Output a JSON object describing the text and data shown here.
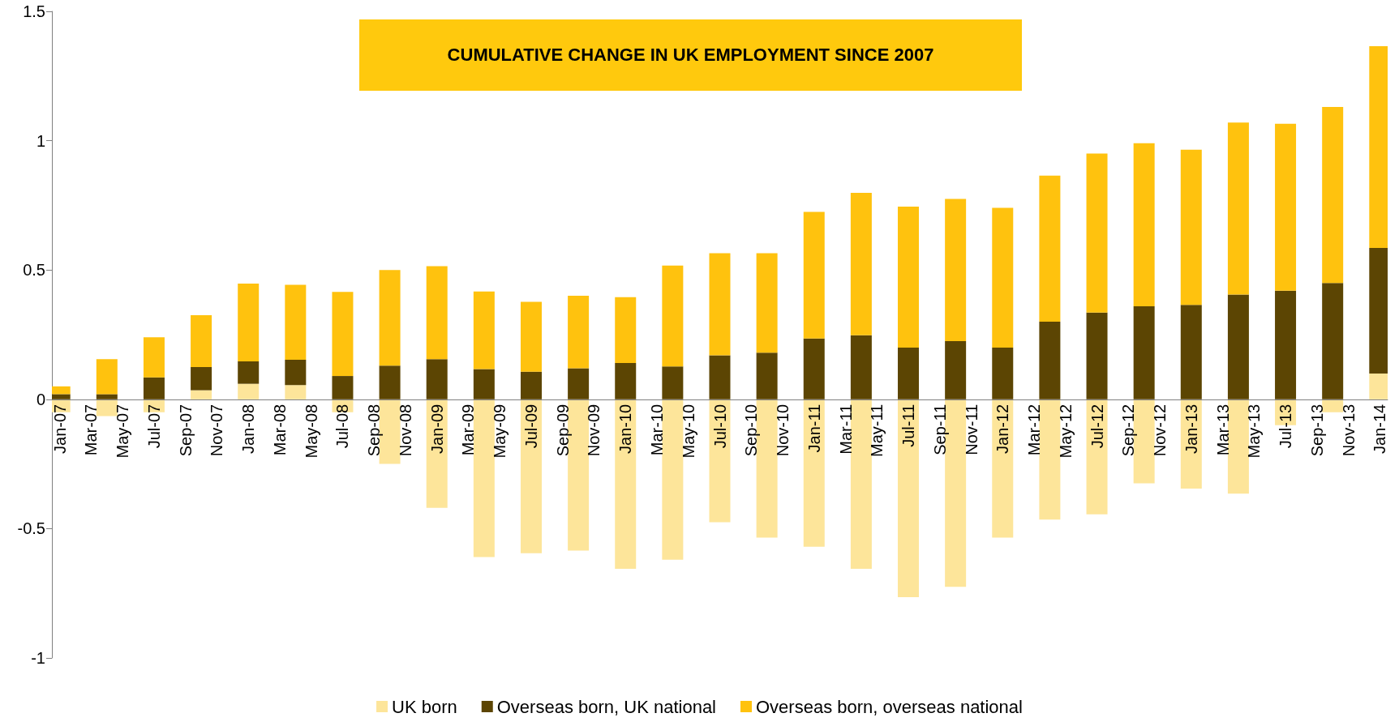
{
  "chart_data": {
    "type": "bar",
    "title": "CUMULATIVE CHANGE IN UK EMPLOYMENT SINCE 2007",
    "stacked": true,
    "categories": [
      "Jan-07",
      null,
      "Mar-07",
      null,
      "May-07",
      null,
      "Jul-07",
      null,
      "Sep-07",
      null,
      "Nov-07",
      null,
      "Jan-08",
      null,
      "Mar-08",
      null,
      "May-08",
      null,
      "Jul-08",
      null,
      "Sep-08",
      null,
      "Nov-08",
      null,
      "Jan-09",
      null,
      "Mar-09",
      null,
      "May-09",
      null,
      "Jul-09",
      null,
      "Sep-09",
      null,
      "Nov-09",
      null,
      "Jan-10",
      null,
      "Mar-10",
      null,
      "May-10",
      null,
      "Jul-10",
      null,
      "Sep-10",
      null,
      "Nov-10",
      null,
      "Jan-11",
      null,
      "Mar-11",
      null,
      "May-11",
      null,
      "Jul-11",
      null,
      "Sep-11",
      null,
      "Nov-11",
      null,
      "Jan-12",
      null,
      "Mar-12",
      null,
      "May-12",
      null,
      "Jul-12",
      null,
      "Sep-12",
      null,
      "Nov-12",
      null,
      "Jan-13",
      null,
      "Mar-13",
      null,
      "May-13",
      null,
      "Jul-13",
      null,
      "Sep-13",
      null,
      "Nov-13",
      null,
      "Jan-14"
    ],
    "series": [
      {
        "name": "UK born",
        "color": "#fde59a",
        "values": [
          -0.05,
          null,
          null,
          -0.065,
          null,
          null,
          -0.05,
          null,
          null,
          0.035,
          null,
          null,
          0.06,
          null,
          null,
          0.055,
          null,
          null,
          -0.05,
          null,
          null,
          -0.25,
          null,
          null,
          -0.42,
          null,
          null,
          -0.61,
          null,
          null,
          -0.595,
          null,
          null,
          -0.585,
          null,
          null,
          -0.655,
          null,
          null,
          -0.62,
          null,
          null,
          -0.475,
          null,
          null,
          -0.535,
          null,
          null,
          -0.57,
          null,
          null,
          -0.655,
          null,
          null,
          -0.765,
          null,
          null,
          -0.725,
          null,
          null,
          -0.535,
          null,
          null,
          -0.465,
          null,
          null,
          -0.445,
          null,
          null,
          -0.325,
          null,
          null,
          -0.345,
          null,
          null,
          -0.365,
          null,
          null,
          -0.1,
          null,
          null,
          -0.05,
          null,
          null,
          0.1
        ]
      },
      {
        "name": "Overseas born, UK national",
        "color": "#5c4503",
        "values": [
          0.02,
          null,
          null,
          0.02,
          null,
          null,
          0.085,
          null,
          null,
          0.09,
          null,
          null,
          0.087,
          null,
          null,
          0.098,
          null,
          null,
          0.09,
          null,
          null,
          0.13,
          null,
          null,
          0.155,
          null,
          null,
          0.117,
          null,
          null,
          0.107,
          null,
          null,
          0.12,
          null,
          null,
          0.14,
          null,
          null,
          0.127,
          null,
          null,
          0.17,
          null,
          null,
          0.18,
          null,
          null,
          0.235,
          null,
          null,
          0.248,
          null,
          null,
          0.2,
          null,
          null,
          0.225,
          null,
          null,
          0.2,
          null,
          null,
          0.3,
          null,
          null,
          0.335,
          null,
          null,
          0.36,
          null,
          null,
          0.365,
          null,
          null,
          0.405,
          null,
          null,
          0.42,
          null,
          null,
          0.45,
          null,
          null,
          0.485
        ]
      },
      {
        "name": "Overseas born, overseas national",
        "color": "#ffc20e",
        "values": [
          0.03,
          null,
          null,
          0.135,
          null,
          null,
          0.155,
          null,
          null,
          0.2,
          null,
          null,
          0.3,
          null,
          null,
          0.29,
          null,
          null,
          0.325,
          null,
          null,
          0.37,
          null,
          null,
          0.36,
          null,
          null,
          0.3,
          null,
          null,
          0.27,
          null,
          null,
          0.28,
          null,
          null,
          0.255,
          null,
          null,
          0.39,
          null,
          null,
          0.395,
          null,
          null,
          0.385,
          null,
          null,
          0.49,
          null,
          null,
          0.55,
          null,
          null,
          0.545,
          null,
          null,
          0.55,
          null,
          null,
          0.54,
          null,
          null,
          0.565,
          null,
          null,
          0.615,
          null,
          null,
          0.63,
          null,
          null,
          0.6,
          null,
          null,
          0.665,
          null,
          null,
          0.645,
          null,
          null,
          0.68,
          null,
          null,
          0.78
        ]
      }
    ],
    "ylim": [
      -1,
      1.5
    ],
    "yticks": [
      -1,
      -0.5,
      0,
      0.5,
      1,
      1.5
    ],
    "grid": false,
    "legend": "bottom"
  }
}
